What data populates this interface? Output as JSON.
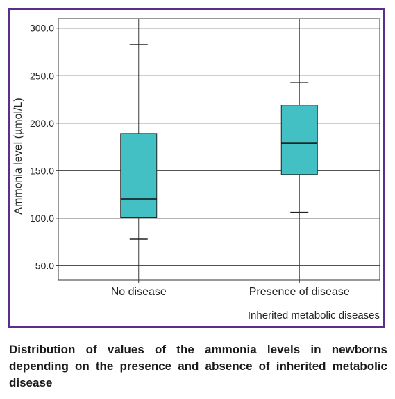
{
  "caption": "Distribution of values of the ammonia levels in newborns depending on the presence and absence of inherited metabolic disease",
  "chart_data": {
    "type": "boxplot",
    "xlabel": "Inherited metabolic diseases",
    "ylabel": "Ammonia level (µmol/L)",
    "ylim": [
      35,
      310
    ],
    "yticks": [
      50,
      100,
      150,
      200,
      250,
      300
    ],
    "ytick_labels": [
      "50.0",
      "100.0",
      "150.0",
      "200.0",
      "250.0",
      "300.0"
    ],
    "grid": true,
    "categories": [
      "No disease",
      "Presence of disease"
    ],
    "boxes": [
      {
        "category": "No disease",
        "whisker_low": 78,
        "q1": 101,
        "median": 120,
        "q3": 189,
        "whisker_high": 283
      },
      {
        "category": "Presence of disease",
        "whisker_low": 106,
        "q1": 146,
        "median": 179,
        "q3": 219,
        "whisker_high": 243
      }
    ],
    "box_color": "#42c0c4",
    "frame_color": "#5b2d8e"
  }
}
